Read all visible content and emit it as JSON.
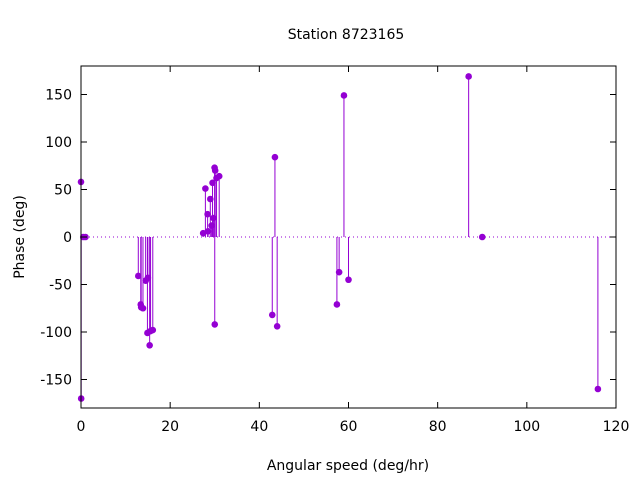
{
  "chart_data": {
    "type": "scatter",
    "style": "impulses-with-points",
    "title": "Station 8723165",
    "xlabel": "Angular speed (deg/hr)",
    "ylabel": "Phase (deg)",
    "xlim": [
      0,
      120
    ],
    "ylim": [
      -180,
      180
    ],
    "x_ticks": [
      0,
      20,
      40,
      60,
      80,
      100,
      120
    ],
    "y_ticks": [
      -150,
      -100,
      -50,
      0,
      50,
      100,
      150
    ],
    "x_tick_labels": [
      "0",
      "20",
      "40",
      "60",
      "80",
      "100",
      "120"
    ],
    "y_tick_labels": [
      "-150",
      "-100",
      "-50",
      "0",
      "50",
      "100",
      "150"
    ],
    "grid": false,
    "zero_line": "dotted",
    "color": "#9400d3",
    "points": [
      {
        "x": 0.0,
        "y": 58
      },
      {
        "x": 0.04,
        "y": -170
      },
      {
        "x": 0.5,
        "y": 0
      },
      {
        "x": 1.0,
        "y": 0
      },
      {
        "x": 12.85,
        "y": -41
      },
      {
        "x": 13.4,
        "y": -71
      },
      {
        "x": 13.5,
        "y": -74
      },
      {
        "x": 13.9,
        "y": -75
      },
      {
        "x": 14.5,
        "y": -46
      },
      {
        "x": 14.9,
        "y": -101
      },
      {
        "x": 15.0,
        "y": -43
      },
      {
        "x": 15.4,
        "y": -114
      },
      {
        "x": 15.6,
        "y": -99
      },
      {
        "x": 16.1,
        "y": -98
      },
      {
        "x": 27.4,
        "y": 4
      },
      {
        "x": 27.9,
        "y": 51
      },
      {
        "x": 28.4,
        "y": 24
      },
      {
        "x": 28.5,
        "y": 6
      },
      {
        "x": 29.0,
        "y": 40
      },
      {
        "x": 29.3,
        "y": 12
      },
      {
        "x": 29.5,
        "y": 57
      },
      {
        "x": 29.7,
        "y": 20
      },
      {
        "x": 29.96,
        "y": 73
      },
      {
        "x": 30.0,
        "y": -92
      },
      {
        "x": 30.1,
        "y": 70
      },
      {
        "x": 30.4,
        "y": 62
      },
      {
        "x": 31.0,
        "y": 64
      },
      {
        "x": 42.9,
        "y": -82
      },
      {
        "x": 43.5,
        "y": 84
      },
      {
        "x": 44.0,
        "y": -94
      },
      {
        "x": 57.4,
        "y": -71
      },
      {
        "x": 57.9,
        "y": -37
      },
      {
        "x": 58.98,
        "y": 149
      },
      {
        "x": 60.0,
        "y": -45
      },
      {
        "x": 86.95,
        "y": 169
      },
      {
        "x": 90.0,
        "y": 0
      },
      {
        "x": 115.94,
        "y": -160
      }
    ]
  }
}
